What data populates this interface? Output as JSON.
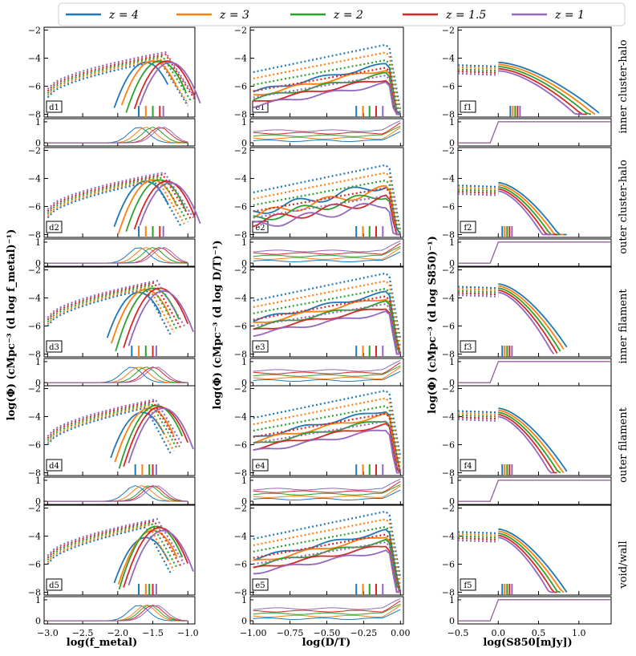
{
  "chart_data": {
    "type": "line",
    "legend": {
      "placement": "top",
      "entries": [
        {
          "label": "z = 4",
          "color": "#1f77b4"
        },
        {
          "label": "z = 3",
          "color": "#ff7f0e"
        },
        {
          "label": "z = 2",
          "color": "#2ca02c"
        },
        {
          "label": "z = 1.5",
          "color": "#d62728"
        },
        {
          "label": "z = 1",
          "color": "#9467bd"
        }
      ]
    },
    "columns": [
      {
        "id": "d",
        "xlabel": "log(f_metal)",
        "xlim": [
          -3.05,
          -0.9
        ],
        "xticks": [
          -3.0,
          -2.5,
          -2.0,
          -1.5,
          -1.0
        ],
        "xtick_labels": [
          "−3.0",
          "−2.5",
          "−2.0",
          "−1.5",
          "−1.0"
        ]
      },
      {
        "id": "e",
        "xlabel": "log(D/T)",
        "xlim": [
          -1.02,
          0.02
        ],
        "xticks": [
          -1.0,
          -0.75,
          -0.5,
          -0.25,
          0.0
        ],
        "xtick_labels": [
          "−1.00",
          "−0.75",
          "−0.50",
          "−0.25",
          "0.00"
        ]
      },
      {
        "id": "f",
        "xlabel": "log(S850[mJy])",
        "xlim": [
          -0.5,
          1.4
        ],
        "xticks": [
          -0.5,
          0.0,
          0.5,
          1.0
        ],
        "xtick_labels": [
          "−0.5",
          "0.0",
          "0.5",
          "1.0"
        ]
      }
    ],
    "ylabels": [
      "log(Φ) (cMpc⁻³ (d log f_metal)⁻¹)",
      "log(Φ) (cMpc⁻³ (d log D/T)⁻¹)",
      "log(Φ) (cMpc⁻³ (d log S850)⁻¹)"
    ],
    "main_yticks": [
      -8,
      -6,
      -4,
      -2
    ],
    "main_ytick_labels": [
      "−8",
      "−6",
      "−4",
      "−2"
    ],
    "sub_yticks": [
      0,
      1
    ],
    "sub_ytick_labels": [
      "0",
      "1"
    ],
    "row_labels": [
      "inner cluster-halo",
      "outer cluster-halo",
      "inner filament",
      "outer filament",
      "void/wall"
    ],
    "panel_ids": [
      [
        "d1",
        "e1",
        "f1"
      ],
      [
        "d2",
        "e2",
        "f2"
      ],
      [
        "d3",
        "e3",
        "f3"
      ],
      [
        "d4",
        "e4",
        "f4"
      ],
      [
        "d5",
        "e5",
        "f5"
      ]
    ],
    "series_order": [
      "z = 4",
      "z = 3",
      "z = 2",
      "z = 1.5",
      "z = 1"
    ],
    "metal_solid": [
      {
        "peak": [
          [
            -1.6,
            -4.3
          ],
          [
            -1.5,
            -4.2
          ],
          [
            -1.4,
            -4.2
          ],
          [
            -1.3,
            -4.2
          ],
          [
            -1.25,
            -4.3
          ]
        ],
        "dash_end": [
          -1.0,
          -1.0,
          -0.95,
          -0.9,
          -0.9
        ]
      },
      {
        "peak": [
          [
            -1.6,
            -4.2
          ],
          [
            -1.5,
            -4.1
          ],
          [
            -1.4,
            -4.1
          ],
          [
            -1.3,
            -4.2
          ],
          [
            -1.25,
            -4.3
          ]
        ],
        "dash_end": [
          -1.1,
          -1.05,
          -1.0,
          -0.95,
          -0.92
        ]
      },
      {
        "peak": [
          [
            -1.7,
            -3.6
          ],
          [
            -1.6,
            -3.4
          ],
          [
            -1.5,
            -3.3
          ],
          [
            -1.4,
            -3.3
          ],
          [
            -1.35,
            -3.5
          ]
        ],
        "dash_end": [
          -1.25,
          -1.2,
          -1.15,
          -1.1,
          -1.05
        ]
      },
      {
        "peak": [
          [
            -1.65,
            -3.7
          ],
          [
            -1.55,
            -3.4
          ],
          [
            -1.45,
            -3.2
          ],
          [
            -1.4,
            -3.3
          ],
          [
            -1.35,
            -3.4
          ]
        ],
        "dash_end": [
          -1.25,
          -1.2,
          -1.15,
          -1.12,
          -1.08
        ]
      },
      {
        "peak": [
          [
            -1.6,
            -4.1
          ],
          [
            -1.5,
            -3.6
          ],
          [
            -1.45,
            -3.3
          ],
          [
            -1.4,
            -3.4
          ],
          [
            -1.35,
            -3.6
          ]
        ],
        "dash_end": [
          -1.25,
          -1.2,
          -1.15,
          -1.1,
          -1.05
        ]
      }
    ],
    "dt_peak": [
      -4.0,
      -4.0,
      -3.2,
      -3.1,
      -3.2
    ],
    "s850_start": [
      -3.9,
      -3.9,
      -2.6,
      -3.0,
      -3.1
    ]
  }
}
